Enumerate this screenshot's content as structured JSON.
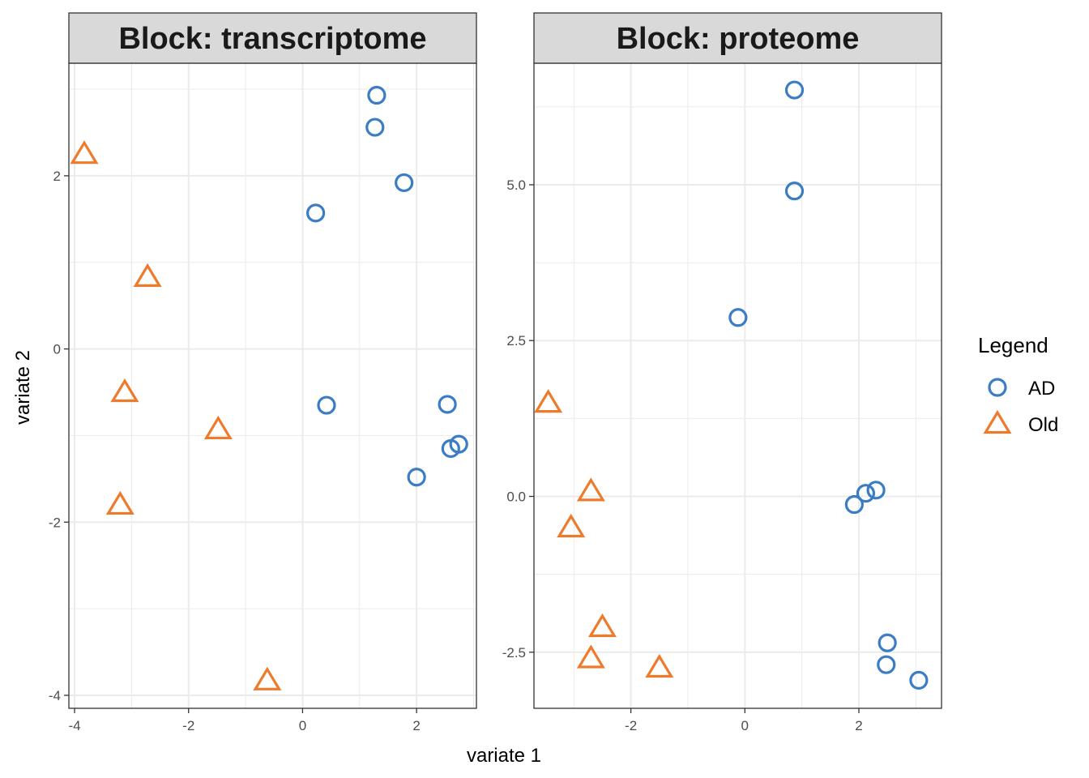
{
  "chart_data": [
    {
      "type": "scatter",
      "title": "Block: transcriptome",
      "xlim": [
        -4.1,
        3.05
      ],
      "ylim": [
        -4.15,
        3.3
      ],
      "x_ticks": [
        -4,
        -2,
        0,
        2
      ],
      "x_tick_labels": [
        "-4",
        "-2",
        "0",
        "2"
      ],
      "y_ticks": [
        -4,
        -2,
        0,
        2
      ],
      "y_tick_labels": [
        "-4",
        "-2",
        "0",
        "2"
      ],
      "grid": true,
      "series": [
        {
          "name": "AD",
          "x": [
            1.3,
            1.27,
            1.78,
            0.23,
            0.42,
            2.54,
            2.6,
            2.74,
            2.0
          ],
          "y": [
            2.93,
            2.56,
            1.92,
            1.57,
            -0.65,
            -0.64,
            -1.15,
            -1.1,
            -1.48
          ]
        },
        {
          "name": "Old",
          "x": [
            -3.83,
            -2.72,
            -3.12,
            -1.48,
            -3.2,
            -0.62
          ],
          "y": [
            2.25,
            0.83,
            -0.5,
            -0.93,
            -1.8,
            -3.83
          ]
        }
      ]
    },
    {
      "type": "scatter",
      "title": "Block: proteome",
      "xlim": [
        -3.7,
        3.45
      ],
      "ylim": [
        -3.4,
        6.95
      ],
      "x_ticks": [
        -2,
        0,
        2
      ],
      "x_tick_labels": [
        "-2",
        "0",
        "2"
      ],
      "y_ticks": [
        -2.5,
        0,
        2.5,
        5
      ],
      "y_tick_labels": [
        "-2.5",
        "0.0",
        "2.5",
        "5.0"
      ],
      "grid": true,
      "series": [
        {
          "name": "AD",
          "x": [
            0.87,
            0.87,
            -0.12,
            1.92,
            2.12,
            2.3,
            2.5,
            2.48,
            3.05
          ],
          "y": [
            6.52,
            4.9,
            2.87,
            -0.13,
            0.05,
            0.1,
            -2.35,
            -2.7,
            -2.95
          ]
        },
        {
          "name": "Old",
          "x": [
            -3.45,
            -2.7,
            -3.05,
            -2.5,
            -2.7,
            -1.5
          ],
          "y": [
            1.5,
            0.08,
            -0.5,
            -2.1,
            -2.6,
            -2.75
          ]
        }
      ]
    }
  ],
  "axes": {
    "xlabel": "variate 1",
    "ylabel": "variate 2"
  },
  "legend": {
    "title": "Legend",
    "position": "right",
    "items": [
      {
        "label": "AD",
        "shape": "circle",
        "color": "#3a7dc5"
      },
      {
        "label": "Old",
        "shape": "triangle",
        "color": "#ee7b2c"
      }
    ]
  },
  "colors": {
    "AD": "#3a7dc5",
    "Old": "#ee7b2c",
    "strip_bg": "#d9d9d9",
    "grid": "#ebebeb"
  }
}
